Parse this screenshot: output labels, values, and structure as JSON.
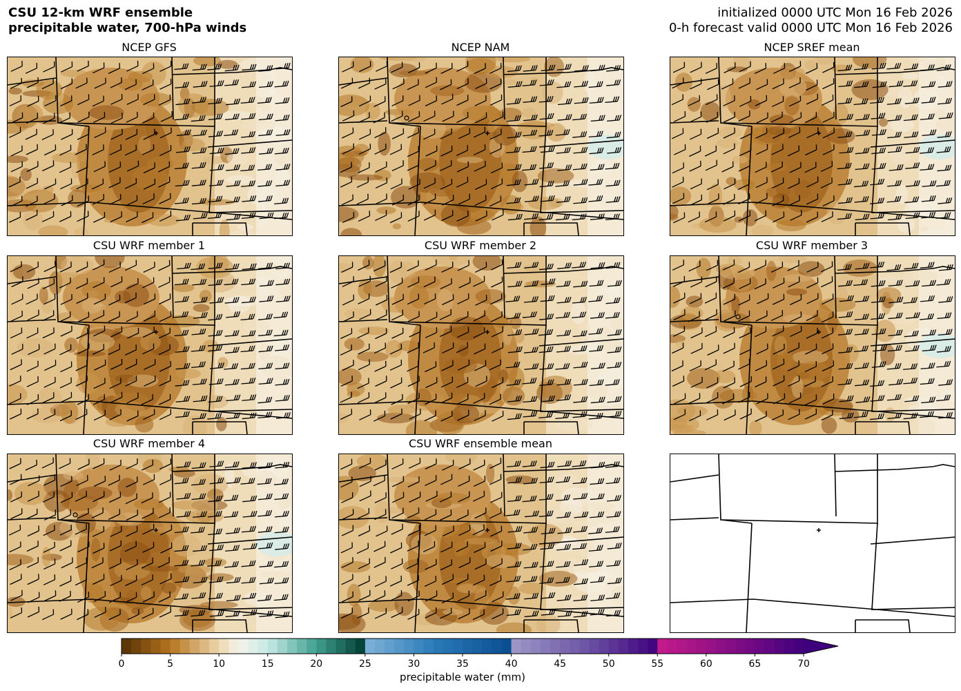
{
  "header": {
    "title_line1": "CSU 12-km WRF ensemble",
    "title_line2": "precipitable water, 700-hPa winds",
    "init_line": "initialized 0000 UTC Mon 16 Feb 2026",
    "valid_line": "0-h forecast valid 0000 UTC Mon 16 Feb 2026"
  },
  "panels": [
    {
      "title": "NCEP GFS",
      "has_data": true,
      "circle": false
    },
    {
      "title": "NCEP NAM",
      "has_data": true,
      "circle": true
    },
    {
      "title": "NCEP SREF mean",
      "has_data": true,
      "circle": false
    },
    {
      "title": "CSU WRF member 1",
      "has_data": true,
      "circle": false
    },
    {
      "title": "CSU WRF member 2",
      "has_data": true,
      "circle": false
    },
    {
      "title": "CSU WRF member 3",
      "has_data": true,
      "circle": true
    },
    {
      "title": "CSU WRF member 4",
      "has_data": true,
      "circle": true
    },
    {
      "title": "CSU WRF ensemble mean",
      "has_data": true,
      "circle": false
    },
    {
      "title": "",
      "has_data": false,
      "circle": false
    }
  ],
  "colorbar": {
    "label": "precipitable water (mm)",
    "ticks": [
      "0",
      "5",
      "10",
      "15",
      "20",
      "25",
      "30",
      "35",
      "40",
      "45",
      "50",
      "55",
      "60",
      "65",
      "70"
    ],
    "min": 0,
    "max": 70,
    "extend": "max"
  },
  "colors": {
    "brown_dark": "#543005",
    "tan": "#e2c38e",
    "cream": "#f5efe3",
    "teal_light": "#c7eae5",
    "teal_dark": "#003c30",
    "blue": "#0a6aa8",
    "purple": "#6a51a3",
    "magenta": "#9b0f8c",
    "deep_purple": "#3f007d"
  }
}
